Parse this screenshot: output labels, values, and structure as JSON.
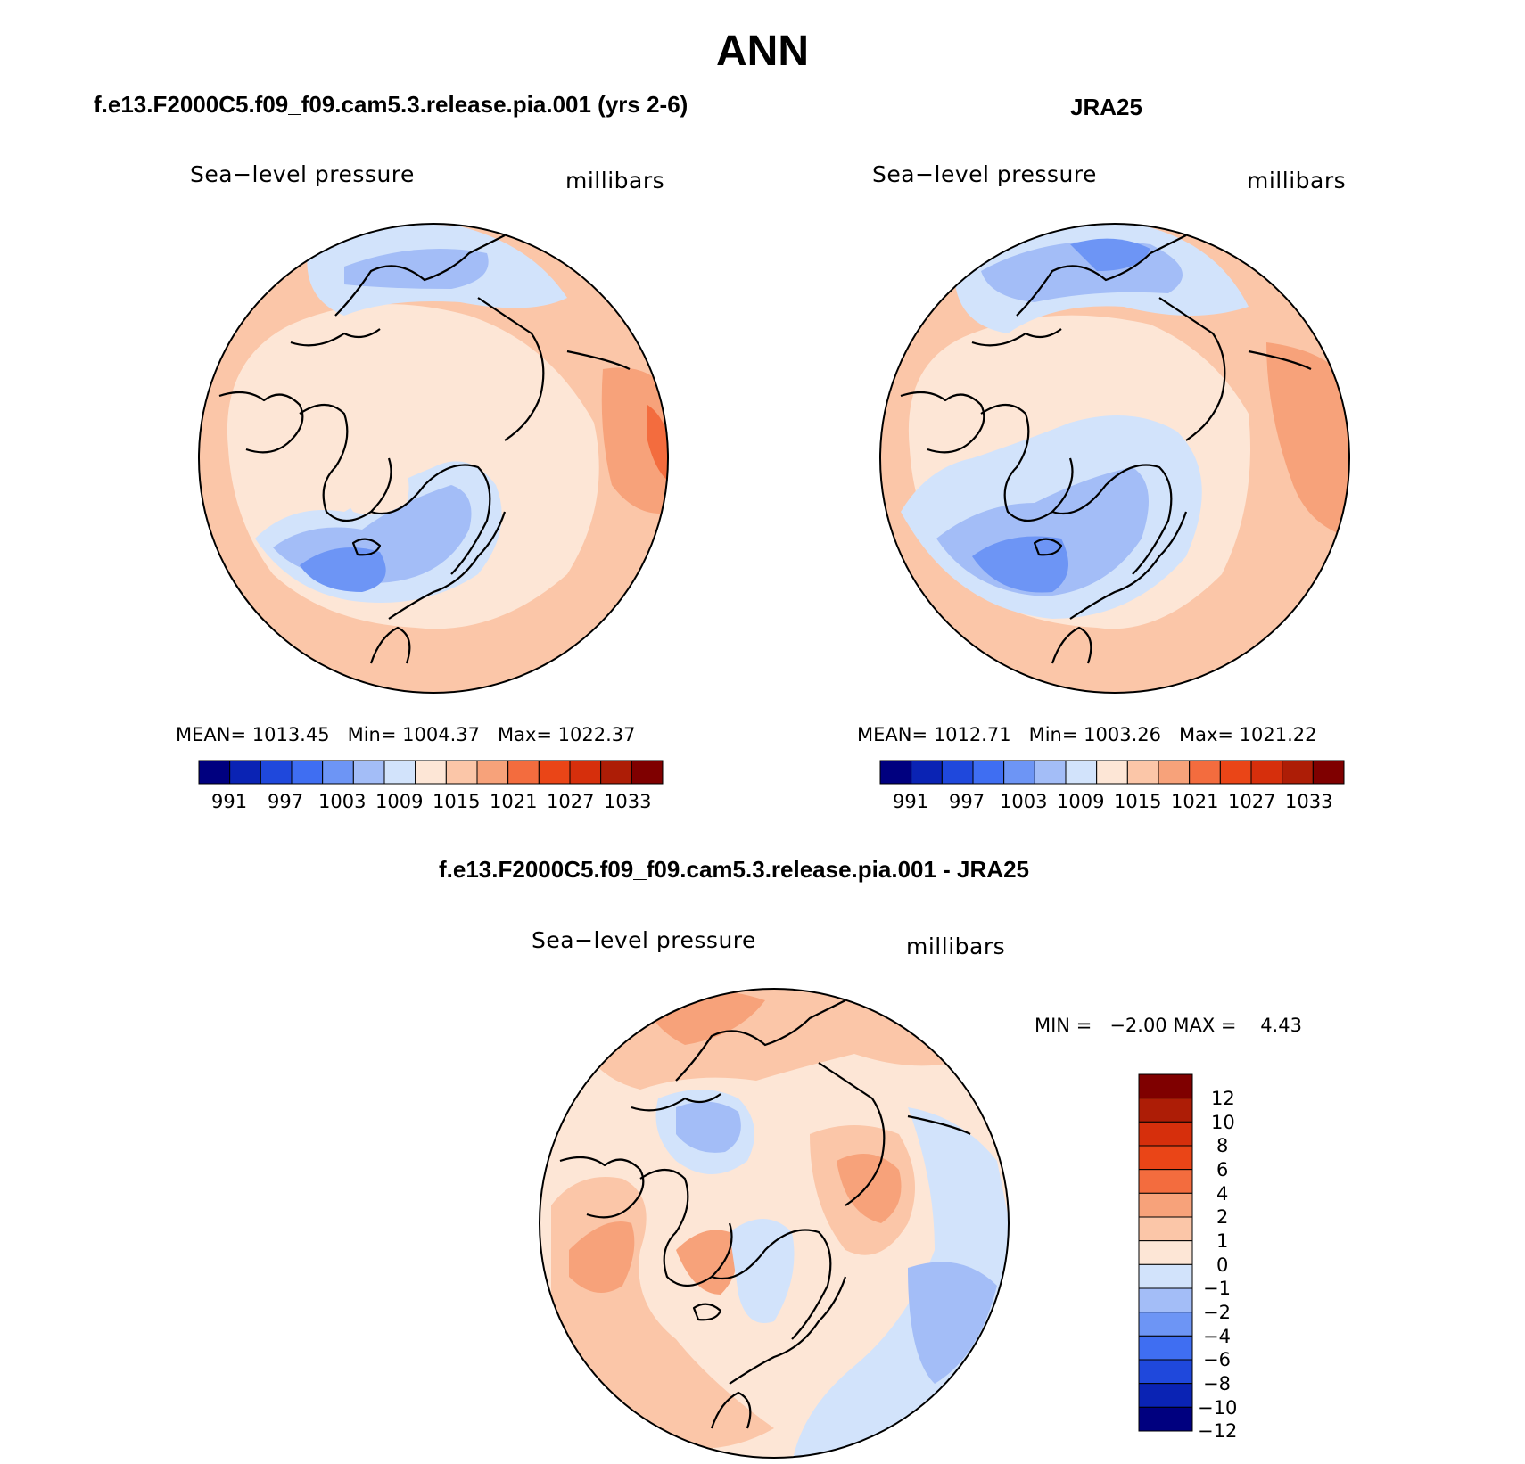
{
  "figure": {
    "title": "ANN",
    "panels": {
      "model": {
        "title": "f.e13.F2000C5.f09_f09.cam5.3.release.pia.001 (yrs 2-6)",
        "variable": "Sea−level pressure",
        "units": "millibars",
        "stats": "MEAN= 1013.45   Min= 1004.37   Max= 1022.37",
        "colorbar_ticks": [
          "991",
          "997",
          "1003",
          "1009",
          "1015",
          "1021",
          "1027",
          "1033"
        ]
      },
      "obs": {
        "title": "JRA25",
        "variable": "Sea−level pressure",
        "units": "millibars",
        "stats": "MEAN= 1012.71   Min= 1003.26   Max= 1021.22",
        "colorbar_ticks": [
          "991",
          "997",
          "1003",
          "1009",
          "1015",
          "1021",
          "1027",
          "1033"
        ]
      },
      "diff": {
        "title": "f.e13.F2000C5.f09_f09.cam5.3.release.pia.001 - JRA25",
        "variable": "Sea−level pressure",
        "units": "millibars",
        "stats": "MIN =   −2.00 MAX =    4.43",
        "colorbar_ticks": [
          "12",
          "10",
          "8",
          "6",
          "4",
          "2",
          "1",
          "0",
          "−1",
          "−2",
          "−4",
          "−6",
          "−8",
          "−10",
          "−12"
        ]
      }
    },
    "colors": {
      "abs_scale": [
        "#00007f",
        "#0a23b4",
        "#1f48dc",
        "#3f6ef2",
        "#6d95f5",
        "#a3bdf7",
        "#d2e3fb",
        "#fde6d6",
        "#fbc6a8",
        "#f7a27a",
        "#f36c3e",
        "#ea4517",
        "#d62f0c",
        "#ad1d06",
        "#7f0000"
      ],
      "diff_scale": [
        "#7f0000",
        "#ad1d06",
        "#d62f0c",
        "#ea4517",
        "#f36c3e",
        "#f7a27a",
        "#fbc6a8",
        "#fde6d6",
        "#d2e3fb",
        "#a3bdf7",
        "#6d95f5",
        "#3f6ef2",
        "#1f48dc",
        "#0a23b4",
        "#00007f"
      ]
    }
  }
}
